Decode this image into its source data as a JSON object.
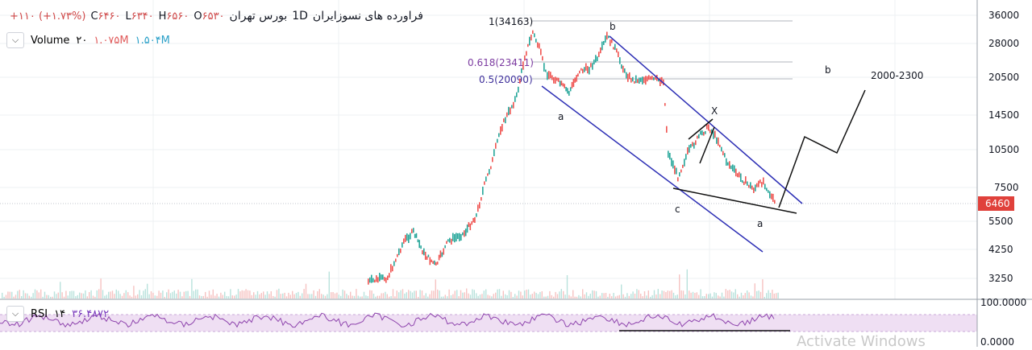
{
  "header": {
    "symbol_name": "فراورده های نسوزایران",
    "interval": "1D",
    "exchange": "بورس تهران",
    "open_label": "O",
    "open_value": "۶۵۳۰",
    "high_label": "H",
    "high_value": "۶۵۶۰",
    "low_label": "L",
    "low_value": "۶۳۴۰",
    "close_label": "C",
    "close_value": "۶۴۶۰",
    "change": "+۱۱۰ (+۱.۷۳%)"
  },
  "volume": {
    "label": "Volume",
    "period": "۲۰",
    "value1": "۱.۰۷۵M",
    "value2": "۱.۵۰۴M"
  },
  "rsi": {
    "label": "RSI",
    "period": "۱۴",
    "value": "۳۶.۴۸۷۲"
  },
  "price_axis": {
    "ticks": [
      "36000",
      "28000",
      "20500",
      "14500",
      "10500",
      "7500",
      "5500",
      "4250",
      "3250"
    ],
    "current_price": "6460",
    "current_color": "#e0413b"
  },
  "rsi_axis": {
    "top": "100.0000",
    "bottom": "0.0000"
  },
  "fib_levels": [
    {
      "label": "1(34163)"
    },
    {
      "label": "0.618(23411)"
    },
    {
      "label": "0.5(20090)"
    }
  ],
  "annotations": {
    "b_top": "b",
    "a_left": "a",
    "x_label": "X",
    "c_label": "c",
    "a_right": "a",
    "b_right": "b",
    "target": "2000-2300"
  },
  "watermark": "Activate Windows",
  "colors": {
    "up": "#26a69a",
    "down": "#ef5350",
    "channel": "#2d2fb5",
    "rsi": "#8e44ad"
  }
}
